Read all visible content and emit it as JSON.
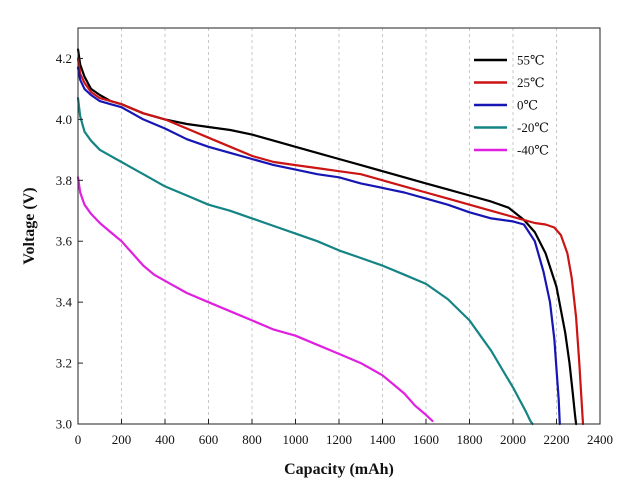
{
  "chart_data": {
    "type": "line",
    "title": "",
    "xlabel": "Capacity (mAh)",
    "ylabel": "Voltage (V)",
    "xlim": [
      0,
      2400
    ],
    "ylim": [
      3.0,
      4.3
    ],
    "xticks": [
      0,
      200,
      400,
      600,
      800,
      1000,
      1200,
      1400,
      1600,
      1800,
      2000,
      2200,
      2400
    ],
    "yticks": [
      3.0,
      3.2,
      3.4,
      3.6,
      3.8,
      4.0,
      4.2
    ],
    "xtick_labels": [
      "0",
      "200",
      "400",
      "600",
      "800",
      "1000",
      "1200",
      "1400",
      "1600",
      "1800",
      "2000",
      "2200",
      "2400"
    ],
    "ytick_labels": [
      "3.0",
      "3.2",
      "3.4",
      "3.6",
      "3.8",
      "4.0",
      "4.2"
    ],
    "grid": "vertical dashed",
    "legend_position": "top-right",
    "series": [
      {
        "name": "55℃",
        "color": "#000000",
        "x": [
          0,
          10,
          30,
          60,
          100,
          150,
          200,
          300,
          400,
          500,
          600,
          700,
          800,
          900,
          1000,
          1100,
          1200,
          1300,
          1400,
          1500,
          1600,
          1700,
          1800,
          1900,
          1980,
          2050,
          2100,
          2150,
          2200,
          2240,
          2260,
          2275,
          2285,
          2290
        ],
        "y": [
          4.23,
          4.18,
          4.14,
          4.1,
          4.08,
          4.06,
          4.05,
          4.02,
          4.0,
          3.985,
          3.975,
          3.965,
          3.95,
          3.93,
          3.91,
          3.89,
          3.87,
          3.85,
          3.83,
          3.81,
          3.79,
          3.77,
          3.75,
          3.73,
          3.71,
          3.67,
          3.63,
          3.56,
          3.45,
          3.3,
          3.2,
          3.1,
          3.03,
          3.0
        ]
      },
      {
        "name": "25℃",
        "color": "#cc1414",
        "x": [
          0,
          10,
          30,
          60,
          100,
          150,
          200,
          300,
          400,
          500,
          600,
          700,
          800,
          900,
          1000,
          1100,
          1200,
          1300,
          1400,
          1500,
          1600,
          1700,
          1800,
          1900,
          2000,
          2100,
          2150,
          2190,
          2220,
          2250,
          2270,
          2290,
          2305,
          2315,
          2322
        ],
        "y": [
          4.2,
          4.15,
          4.12,
          4.09,
          4.07,
          4.06,
          4.05,
          4.02,
          4.0,
          3.97,
          3.94,
          3.91,
          3.88,
          3.86,
          3.85,
          3.84,
          3.83,
          3.82,
          3.8,
          3.78,
          3.76,
          3.74,
          3.72,
          3.7,
          3.68,
          3.66,
          3.655,
          3.645,
          3.62,
          3.56,
          3.48,
          3.35,
          3.2,
          3.08,
          3.0
        ]
      },
      {
        "name": "0℃",
        "color": "#1616b4",
        "x": [
          0,
          10,
          30,
          60,
          100,
          150,
          200,
          250,
          300,
          400,
          500,
          600,
          700,
          800,
          900,
          1000,
          1100,
          1200,
          1300,
          1400,
          1500,
          1600,
          1700,
          1800,
          1900,
          2000,
          2050,
          2100,
          2140,
          2170,
          2190,
          2200,
          2210,
          2215
        ],
        "y": [
          4.17,
          4.13,
          4.1,
          4.08,
          4.06,
          4.05,
          4.04,
          4.02,
          4.0,
          3.97,
          3.935,
          3.91,
          3.89,
          3.87,
          3.85,
          3.835,
          3.82,
          3.81,
          3.79,
          3.775,
          3.76,
          3.74,
          3.72,
          3.695,
          3.675,
          3.665,
          3.655,
          3.6,
          3.5,
          3.4,
          3.28,
          3.18,
          3.08,
          3.0
        ]
      },
      {
        "name": "-20℃",
        "color": "#148484",
        "x": [
          0,
          10,
          30,
          60,
          100,
          150,
          200,
          300,
          400,
          500,
          600,
          700,
          800,
          900,
          1000,
          1100,
          1200,
          1300,
          1400,
          1500,
          1600,
          1700,
          1800,
          1850,
          1900,
          1950,
          2000,
          2030,
          2060,
          2080,
          2090
        ],
        "y": [
          4.07,
          4.01,
          3.96,
          3.93,
          3.9,
          3.88,
          3.86,
          3.82,
          3.78,
          3.75,
          3.72,
          3.7,
          3.675,
          3.65,
          3.625,
          3.6,
          3.57,
          3.545,
          3.52,
          3.49,
          3.46,
          3.41,
          3.34,
          3.29,
          3.24,
          3.18,
          3.12,
          3.08,
          3.04,
          3.01,
          3.0
        ]
      },
      {
        "name": "-40℃",
        "color": "#e020e0",
        "x": [
          0,
          10,
          30,
          60,
          100,
          150,
          200,
          250,
          300,
          350,
          400,
          500,
          600,
          700,
          800,
          900,
          1000,
          1100,
          1200,
          1300,
          1400,
          1450,
          1500,
          1550,
          1600,
          1630
        ],
        "y": [
          3.81,
          3.76,
          3.72,
          3.69,
          3.66,
          3.63,
          3.6,
          3.56,
          3.52,
          3.49,
          3.47,
          3.43,
          3.4,
          3.37,
          3.34,
          3.31,
          3.29,
          3.26,
          3.23,
          3.2,
          3.16,
          3.13,
          3.1,
          3.06,
          3.03,
          3.01
        ]
      }
    ]
  }
}
